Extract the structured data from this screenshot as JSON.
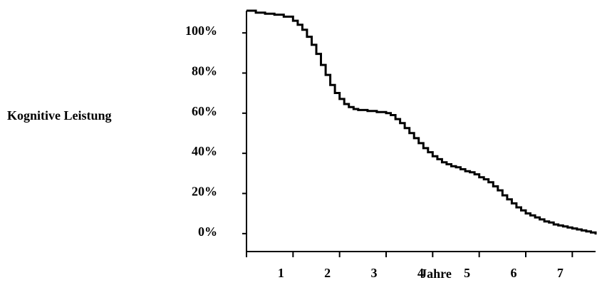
{
  "chart_data": {
    "type": "line",
    "ylabel": "Kognitive Leistung",
    "xlabel": "Jahre",
    "xlim": [
      0,
      7.5
    ],
    "ylim": [
      -10,
      110
    ],
    "y_ticks": [
      {
        "value": 100,
        "label": "100%"
      },
      {
        "value": 80,
        "label": "80%"
      },
      {
        "value": 60,
        "label": "60%"
      },
      {
        "value": 40,
        "label": "40%"
      },
      {
        "value": 20,
        "label": "20%"
      },
      {
        "value": 0,
        "label": "0%"
      }
    ],
    "x_ticks": [
      {
        "value": 1,
        "label": "1"
      },
      {
        "value": 2,
        "label": "2"
      },
      {
        "value": 3,
        "label": "3"
      },
      {
        "value": 4,
        "label": "4"
      },
      {
        "value": 5,
        "label": "5"
      },
      {
        "value": 6,
        "label": "6"
      },
      {
        "value": 7,
        "label": "7"
      }
    ],
    "series": [
      {
        "line_style": "step",
        "color": "#000000",
        "x": [
          0,
          0.2,
          0.4,
          0.6,
          0.8,
          1.0,
          1.1,
          1.2,
          1.3,
          1.4,
          1.5,
          1.6,
          1.7,
          1.8,
          1.9,
          2.0,
          2.1,
          2.2,
          2.3,
          2.4,
          2.6,
          2.8,
          3.0,
          3.1,
          3.2,
          3.3,
          3.4,
          3.5,
          3.6,
          3.7,
          3.8,
          3.9,
          4.0,
          4.1,
          4.2,
          4.3,
          4.4,
          4.5,
          4.6,
          4.7,
          4.8,
          4.9,
          5.0,
          5.1,
          5.2,
          5.3,
          5.4,
          5.5,
          5.6,
          5.7,
          5.8,
          5.9,
          6.0,
          6.1,
          6.2,
          6.3,
          6.4,
          6.5,
          6.6,
          6.7,
          6.8,
          6.9,
          7.0,
          7.1,
          7.2,
          7.3,
          7.4,
          7.5
        ],
        "y": [
          110,
          109,
          108.5,
          108,
          107,
          105,
          103,
          100.5,
          97,
          93,
          88.5,
          83,
          78,
          73,
          69,
          66,
          63.5,
          62,
          61,
          60.5,
          60,
          59.5,
          59,
          58,
          56,
          54,
          51.5,
          49,
          46.5,
          44,
          41.5,
          39.5,
          37.5,
          36,
          34.5,
          33.5,
          32.5,
          32,
          31,
          30,
          29.5,
          28.5,
          27,
          26,
          24.5,
          22.5,
          20.5,
          18,
          16,
          14,
          12,
          10.5,
          9,
          8,
          7,
          6,
          5,
          4.5,
          3.5,
          3,
          2.5,
          2,
          1.5,
          1,
          0.5,
          0,
          -0.5,
          -1.5
        ]
      }
    ]
  }
}
